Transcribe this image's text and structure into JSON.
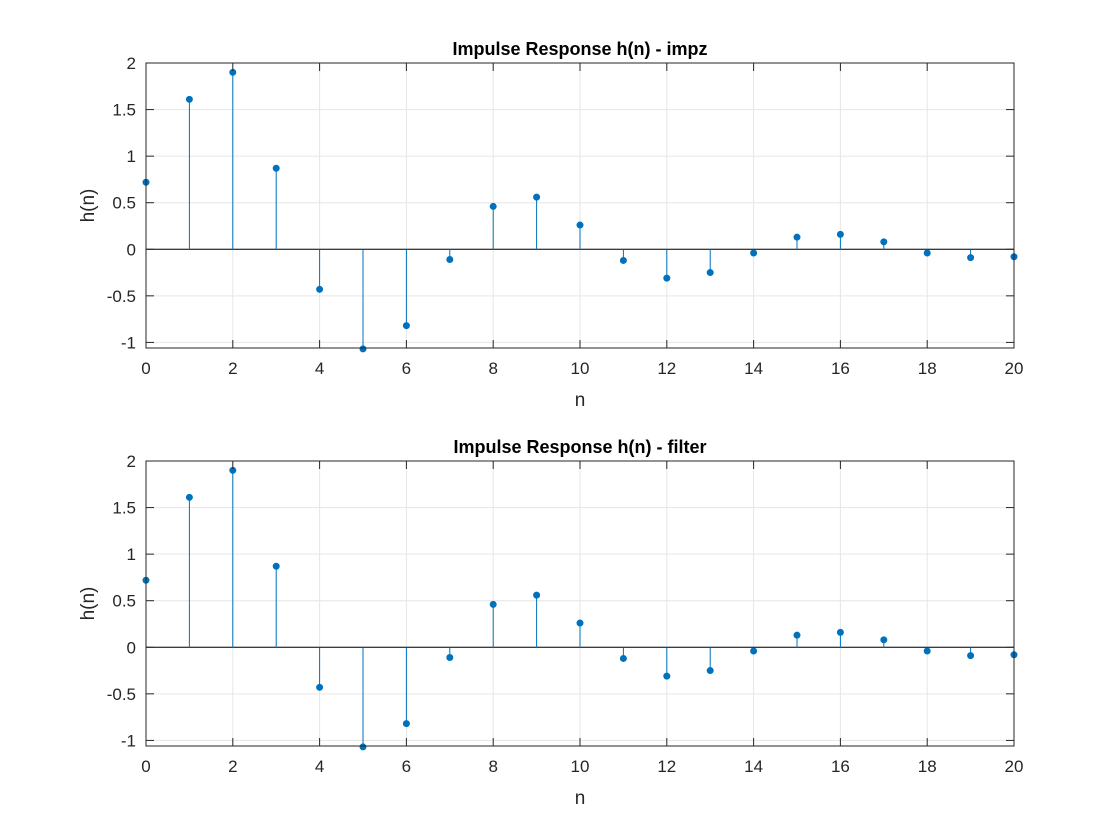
{
  "chart_data": [
    {
      "type": "stem",
      "title": "Impulse Response h(n) - impz",
      "xlabel": "n",
      "ylabel": "h(n)",
      "xlim": [
        0,
        20
      ],
      "ylim": [
        -1.06,
        2
      ],
      "xticks": [
        0,
        2,
        4,
        6,
        8,
        10,
        12,
        14,
        16,
        18,
        20
      ],
      "yticks": [
        -1,
        -0.5,
        0,
        0.5,
        1,
        1.5,
        2
      ],
      "grid": true,
      "color": "#0072BD",
      "x": [
        0,
        1,
        2,
        3,
        4,
        5,
        6,
        7,
        8,
        9,
        10,
        11,
        12,
        13,
        14,
        15,
        16,
        17,
        18,
        19,
        20
      ],
      "y": [
        0.72,
        1.61,
        1.9,
        0.87,
        -0.43,
        -1.07,
        -0.82,
        -0.11,
        0.46,
        0.56,
        0.26,
        -0.12,
        -0.31,
        -0.25,
        -0.04,
        0.13,
        0.16,
        0.08,
        -0.04,
        -0.09,
        -0.08
      ]
    },
    {
      "type": "stem",
      "title": "Impulse Response h(n) - filter",
      "xlabel": "n",
      "ylabel": "h(n)",
      "xlim": [
        0,
        20
      ],
      "ylim": [
        -1.06,
        2
      ],
      "xticks": [
        0,
        2,
        4,
        6,
        8,
        10,
        12,
        14,
        16,
        18,
        20
      ],
      "yticks": [
        -1,
        -0.5,
        0,
        0.5,
        1,
        1.5,
        2
      ],
      "grid": true,
      "color": "#0072BD",
      "x": [
        0,
        1,
        2,
        3,
        4,
        5,
        6,
        7,
        8,
        9,
        10,
        11,
        12,
        13,
        14,
        15,
        16,
        17,
        18,
        19,
        20
      ],
      "y": [
        0.72,
        1.61,
        1.9,
        0.87,
        -0.43,
        -1.07,
        -0.82,
        -0.11,
        0.46,
        0.56,
        0.26,
        -0.12,
        -0.31,
        -0.25,
        -0.04,
        0.13,
        0.16,
        0.08,
        -0.04,
        -0.09,
        -0.08
      ]
    }
  ]
}
